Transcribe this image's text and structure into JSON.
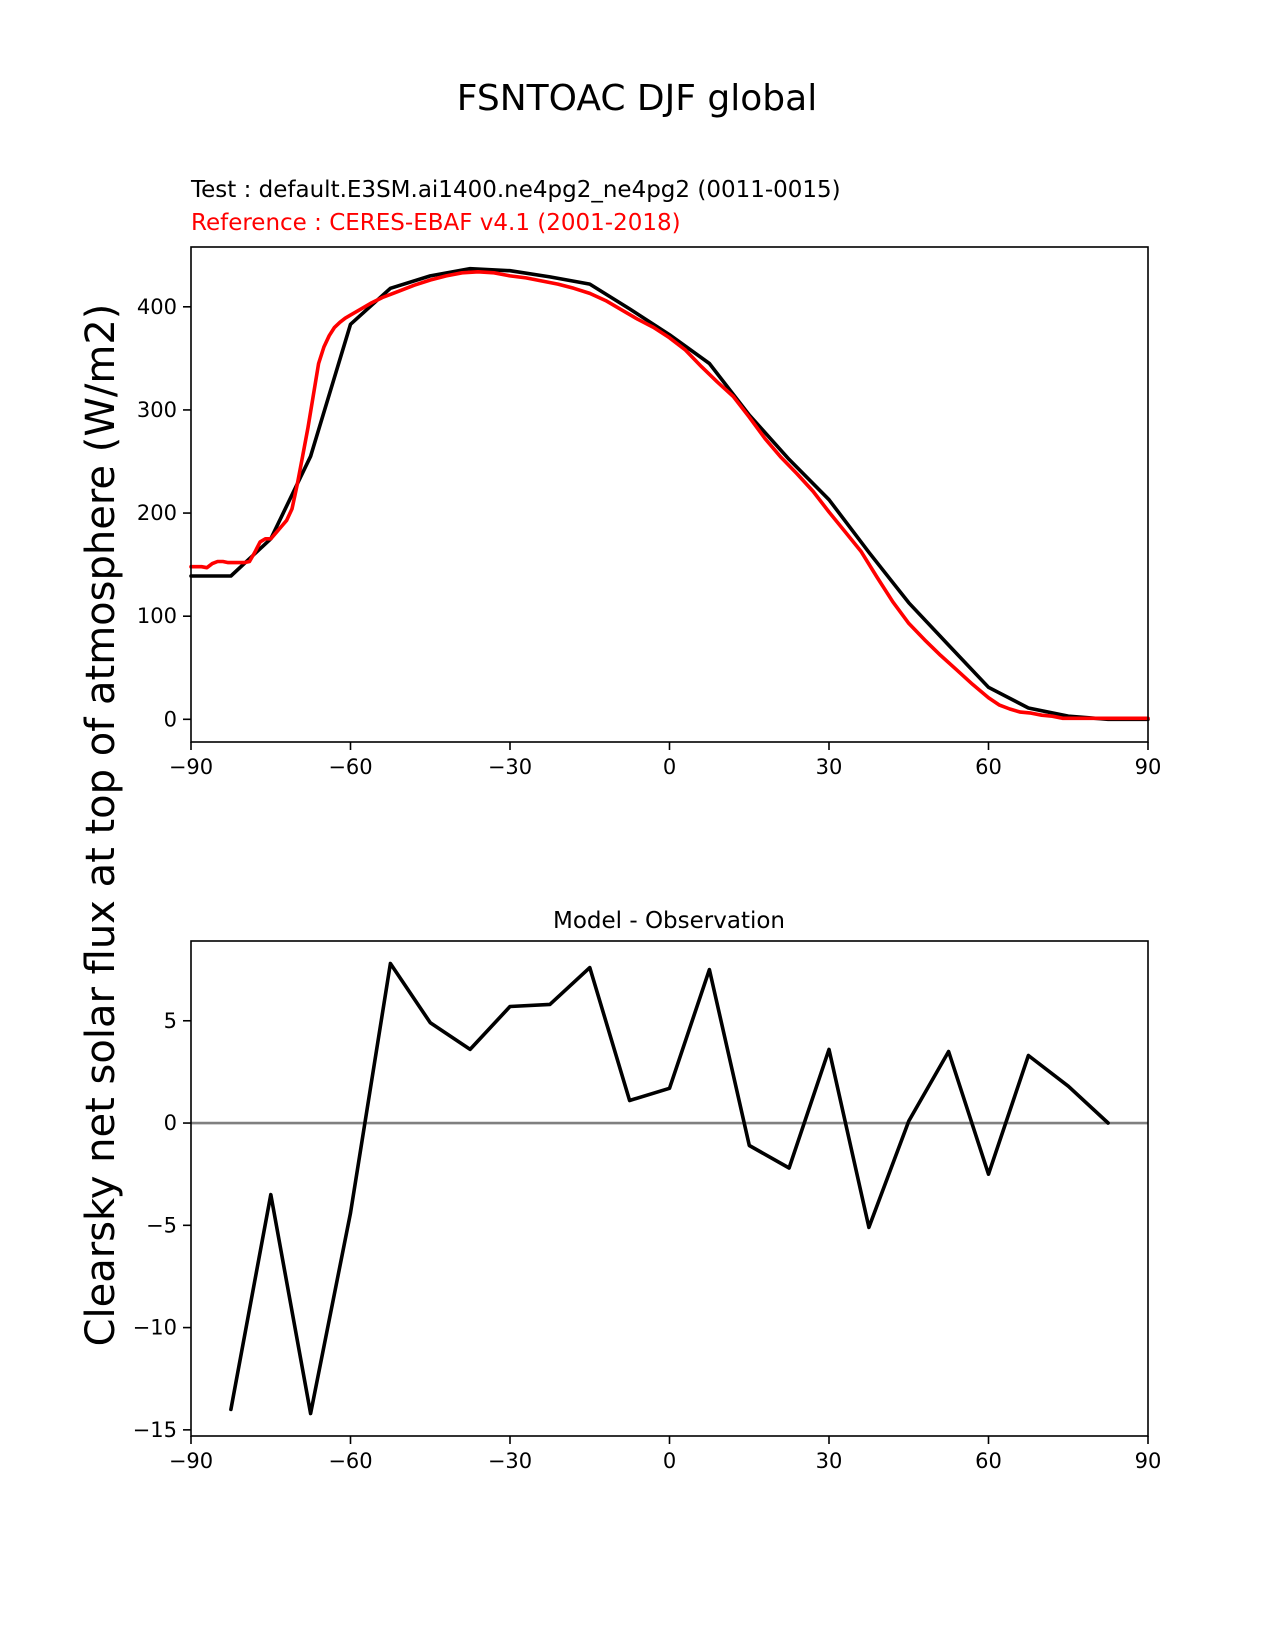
{
  "figure": {
    "suptitle": "FSNTOAC DJF global"
  },
  "chart_data": [
    {
      "type": "line",
      "subtitle_test": "Test : default.E3SM.ai1400.ne4pg2_ne4pg2 (0011-0015)",
      "subtitle_ref": "Reference : CERES-EBAF v4.1 (2001-2018)",
      "ylabel": "Clearsky net solar flux at top of atmosphere (W/m2)",
      "xlim": [
        -90,
        90
      ],
      "ylim": [
        -22,
        458
      ],
      "xticks": [
        -90,
        -60,
        -30,
        0,
        30,
        60,
        90
      ],
      "xtick_labels": [
        "−90",
        "−60",
        "−30",
        "0",
        "30",
        "60",
        "90"
      ],
      "yticks": [
        0,
        100,
        200,
        300,
        400
      ],
      "ytick_labels": [
        "0",
        "100",
        "200",
        "300",
        "400"
      ],
      "colors": {
        "test": "#000000",
        "reference": "#ff0000"
      },
      "series": [
        {
          "role": "test",
          "x": [
            -90,
            -82.5,
            -75,
            -67.5,
            -60,
            -52.5,
            -45,
            -37.5,
            -30,
            -22.5,
            -15,
            -7.5,
            0,
            7.5,
            15,
            22.5,
            30,
            37.5,
            45,
            52.5,
            60,
            67.5,
            75,
            82.5,
            90
          ],
          "values": [
            139,
            139,
            175,
            255,
            383,
            418,
            430,
            437,
            435,
            429,
            422,
            398,
            373,
            345,
            295,
            252,
            213,
            162,
            113,
            72,
            31,
            11,
            3,
            0,
            0
          ]
        },
        {
          "role": "reference",
          "x": [
            -90,
            -88,
            -87,
            -86,
            -85,
            -84,
            -83,
            -82,
            -81,
            -80,
            -79,
            -78,
            -77,
            -76,
            -75,
            -74,
            -73,
            -72,
            -71,
            -70,
            -69,
            -68,
            -67,
            -66,
            -65,
            -64,
            -63,
            -62,
            -61,
            -60,
            -58,
            -56,
            -54,
            -52,
            -50,
            -48,
            -45,
            -42,
            -39,
            -36,
            -33,
            -30,
            -27,
            -24,
            -21,
            -18,
            -15,
            -12,
            -9,
            -6,
            -3,
            0,
            3,
            6,
            9,
            12,
            15,
            18,
            21,
            24,
            27,
            30,
            33,
            36,
            39,
            42,
            45,
            48,
            51,
            54,
            57,
            60,
            62,
            64,
            66,
            68,
            70,
            72,
            74,
            76,
            78,
            80,
            82,
            84,
            86,
            88,
            90
          ],
          "values": [
            148,
            148,
            147,
            151,
            153,
            153,
            152,
            152,
            152,
            152,
            153,
            162,
            172,
            175,
            175,
            181,
            187,
            193,
            204,
            228,
            255,
            283,
            314,
            345,
            361,
            372,
            380,
            385,
            389,
            392,
            398,
            404,
            409,
            413,
            417,
            421,
            426,
            430,
            433,
            434,
            433,
            430,
            428,
            425,
            422,
            418,
            413,
            406,
            397,
            388,
            380,
            370,
            358,
            342,
            327,
            313,
            293,
            272,
            254,
            238,
            221,
            201,
            182,
            163,
            138,
            114,
            93,
            77,
            62,
            48,
            34,
            21,
            14,
            10,
            7,
            6,
            4,
            3,
            1,
            1,
            1,
            1,
            1,
            1,
            1,
            1,
            1
          ]
        }
      ]
    },
    {
      "type": "line",
      "title": "Model - Observation",
      "xlim": [
        -90,
        90
      ],
      "ylim": [
        -15.3,
        8.9
      ],
      "xticks": [
        -90,
        -60,
        -30,
        0,
        30,
        60,
        90
      ],
      "xtick_labels": [
        "−90",
        "−60",
        "−30",
        "0",
        "30",
        "60",
        "90"
      ],
      "yticks": [
        -15,
        -10,
        -5,
        0,
        5
      ],
      "ytick_labels": [
        "−15",
        "−10",
        "−5",
        "0",
        "5"
      ],
      "zero_line_color": "#808080",
      "series": [
        {
          "role": "difference",
          "x": [
            -82.5,
            -75,
            -67.5,
            -60,
            -52.5,
            -45,
            -37.5,
            -30,
            -22.5,
            -15,
            -7.5,
            0,
            7.5,
            15,
            22.5,
            30,
            37.5,
            45,
            52.5,
            60,
            67.5,
            75,
            82.5
          ],
          "values": [
            -14.0,
            -3.5,
            -14.2,
            -4.4,
            7.8,
            4.9,
            3.6,
            5.7,
            5.8,
            7.6,
            1.1,
            1.7,
            7.5,
            -1.1,
            -2.2,
            3.6,
            -5.1,
            0.1,
            3.5,
            -2.5,
            3.3,
            1.8,
            0.0
          ]
        }
      ]
    }
  ]
}
